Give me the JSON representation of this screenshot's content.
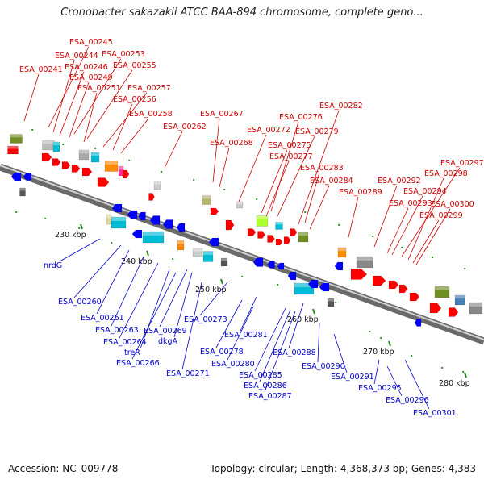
{
  "title": "Cronobacter sakazakii ATCC BAA-894 chromosome, complete geno...",
  "footer": {
    "accession": "Accession: NC_009778",
    "summary": "Topology: circular; Length: 4,368,373 bp; Genes: 4,383"
  },
  "colors": {
    "plus_label": "#cc0000",
    "minus_label": "#0000cc",
    "backbone": "#8c8c8c",
    "forward_cds": "#ff0000",
    "reverse_cds": "#0000ff",
    "tick": "#228b22"
  },
  "ticks": [
    {
      "text": "230 kbp"
    },
    {
      "text": "240 kbp"
    },
    {
      "text": "250 kbp"
    },
    {
      "text": "260 kbp"
    },
    {
      "text": "270 kbp"
    },
    {
      "text": "280 kbp"
    }
  ],
  "top_labels": [
    "ESA_00245",
    "ESA_00244",
    "ESA_00253",
    "ESA_00246",
    "ESA_00255",
    "ESA_00241",
    "ESA_00249",
    "ESA_00251",
    "ESA_00257",
    "ESA_00256",
    "ESA_00258",
    "ESA_00262",
    "ESA_00267",
    "ESA_00282",
    "ESA_00276",
    "ESA_00272",
    "ESA_00279",
    "ESA_00268",
    "ESA_00275",
    "ESA_00277",
    "ESA_00283",
    "ESA_00284",
    "ESA_00289",
    "ESA_00297",
    "ESA_00298",
    "ESA_00292",
    "ESA_00294",
    "ESA_00293",
    "ESA_00300",
    "ESA_00299"
  ],
  "bottom_labels": [
    "nrdG",
    "ESA_00260",
    "ESA_00261",
    "ESA_00263",
    "ESA_00264",
    "treR",
    "ESA_00266",
    "ESA_00269",
    "dkgA",
    "ESA_00271",
    "ESA_00273",
    "ESA_00281",
    "ESA_00278",
    "ESA_00280",
    "ESA_00288",
    "ESA_00285",
    "ESA_00286",
    "ESA_00287",
    "ESA_00290",
    "ESA_00291",
    "ESA_00295",
    "ESA_00296",
    "ESA_00301"
  ]
}
